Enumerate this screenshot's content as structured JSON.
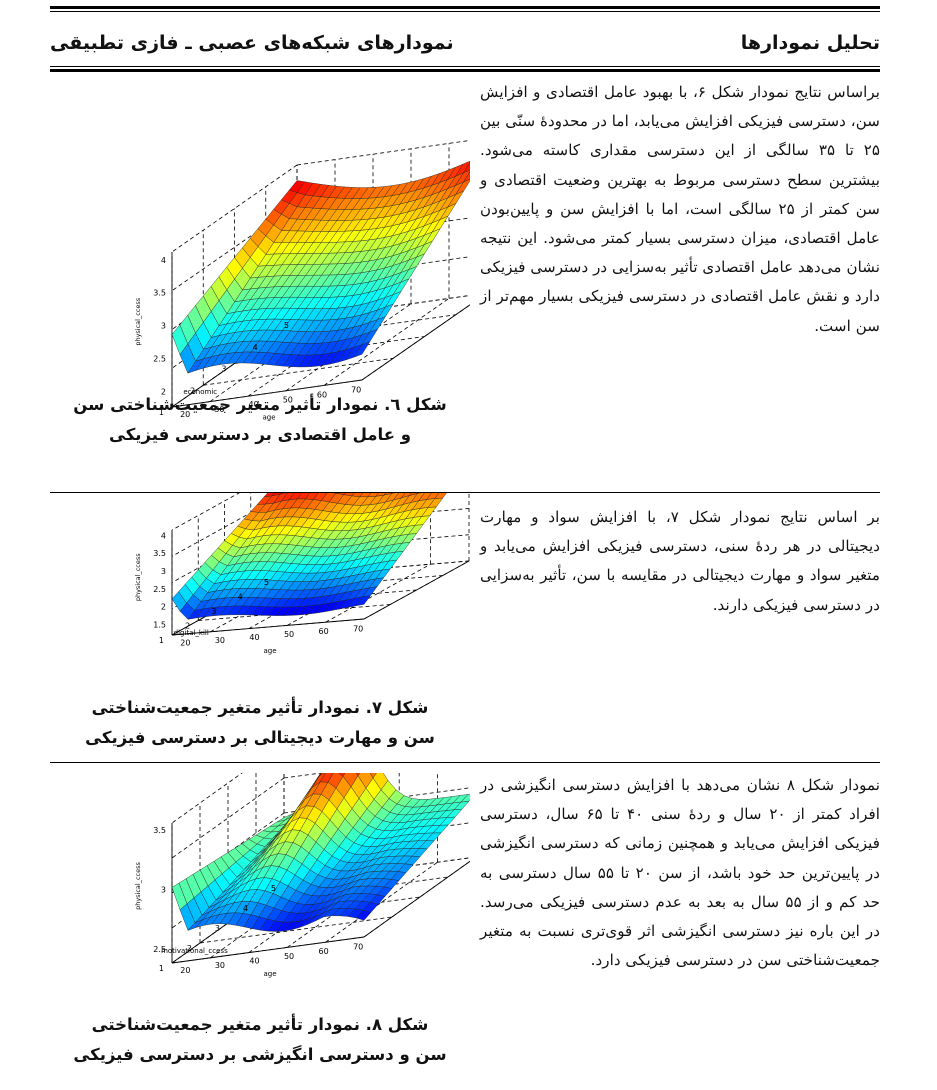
{
  "header": {
    "right_title": "تحلیل نمودارها",
    "left_title": "نمودارهای شبکه‌های عصبی ـ فازی تطبیقی"
  },
  "sections": [
    {
      "text": "براساس نتایج نمودار شکل ۶، با بهبود عامل اقتصادی و افزایش سن، دسترسی فیزیکی افزایش می‌یابد، اما در محدودهٔ سنّی بین ۲۵ تا ۳۵ سالگی از این دسترسی مقداری کاسته می‌شود. بیشترین سطح دسترسی مربوط به بهترین وضعیت اقتصادی و سن کمتر از ۲۵ سالگی است، اما با افزایش سن و پایین‌بودن عامل اقتصادی، میزان دسترسی بسیار کمتر می‌شود. این نتیجه نشان می‌دهد عامل اقتصادی تأثیر به‌سزایی در دسترسی فیزیکی دارد و نقش عامل اقتصادی در دسترسی فیزیکی بسیار مهم‌تر از سن است.",
      "caption_line1": "شکل ٦. نمودار تأثیر متغیر جمعیت‌شناختی سن",
      "caption_line2": "و عامل اقتصادی بر دسترسی فیزیکی",
      "plot": {
        "zlabel": "physical_ccess",
        "xlabel": "economic",
        "ylabel": "age",
        "z_ticks": [
          "4",
          "3.5",
          "3",
          "2.5",
          "2"
        ],
        "x_ticks": [
          "5",
          "4",
          "3",
          "2",
          "1"
        ],
        "y_ticks": [
          "20",
          "30",
          "40",
          "50",
          "60",
          "70"
        ]
      }
    },
    {
      "text": "بر اساس نتایج نمودار شکل ۷، با افزایش سواد و مهارت دیجیتالی در هر ردهٔ سنی، دسترسی فیزیکی افزایش می‌یابد و متغیر سواد و مهارت دیجیتالی در مقایسه با سن، تأثیر به‌سزایی در دسترسی فیزیکی دارند.",
      "caption_line1": "شکل ۷. نمودار تأثیر متغیر جمعیت‌شناختی",
      "caption_line2": "سن و مهارت دیجیتالی بر دسترسی فیزیکی",
      "plot": {
        "zlabel": "physical_ccess",
        "xlabel": "digital_kill",
        "ylabel": "age",
        "z_ticks": [
          "4",
          "3.5",
          "3",
          "2.5",
          "2",
          "1.5"
        ],
        "x_ticks": [
          "5",
          "4",
          "3",
          "2",
          "1"
        ],
        "y_ticks": [
          "20",
          "30",
          "40",
          "50",
          "60",
          "70"
        ]
      }
    },
    {
      "text": "نمودار شکل ۸ نشان می‌دهد با افزایش دسترسی انگیزشی در افراد کمتر از ۲۰ سال و ردهٔ سنی ۴۰ تا ۶۵ سال، دسترسی فیزیکی افزایش می‌یابد و همچنین زمانی که دسترسی انگیزشی در پایین‌ترین حد خود باشد، از سن ۲۰ تا ۵۵ سال دسترسی به حد کم و از ۵۵ سال به بعد به عدم دسترسی فیزیکی می‌رسد. در این باره نیز دسترسی انگیزشی اثر قوی‌تری نسبت به متغیر جمعیت‌شناختی سن در دسترسی فیزیکی دارد.",
      "caption_line1": "شکل ۸. نمودار تأثیر متغیر جمعیت‌شناختی",
      "caption_line2": "سن و دسترسی انگیزشی بر دسترسی فیزیکی",
      "plot": {
        "zlabel": "physical_ccess",
        "xlabel": "motivational_ccess",
        "ylabel": "age",
        "z_ticks": [
          "3.5",
          "3",
          "2.5"
        ],
        "x_ticks": [
          "5",
          "4",
          "3",
          "2",
          "1"
        ],
        "y_ticks": [
          "20",
          "30",
          "40",
          "50",
          "60",
          "70"
        ]
      }
    }
  ]
}
